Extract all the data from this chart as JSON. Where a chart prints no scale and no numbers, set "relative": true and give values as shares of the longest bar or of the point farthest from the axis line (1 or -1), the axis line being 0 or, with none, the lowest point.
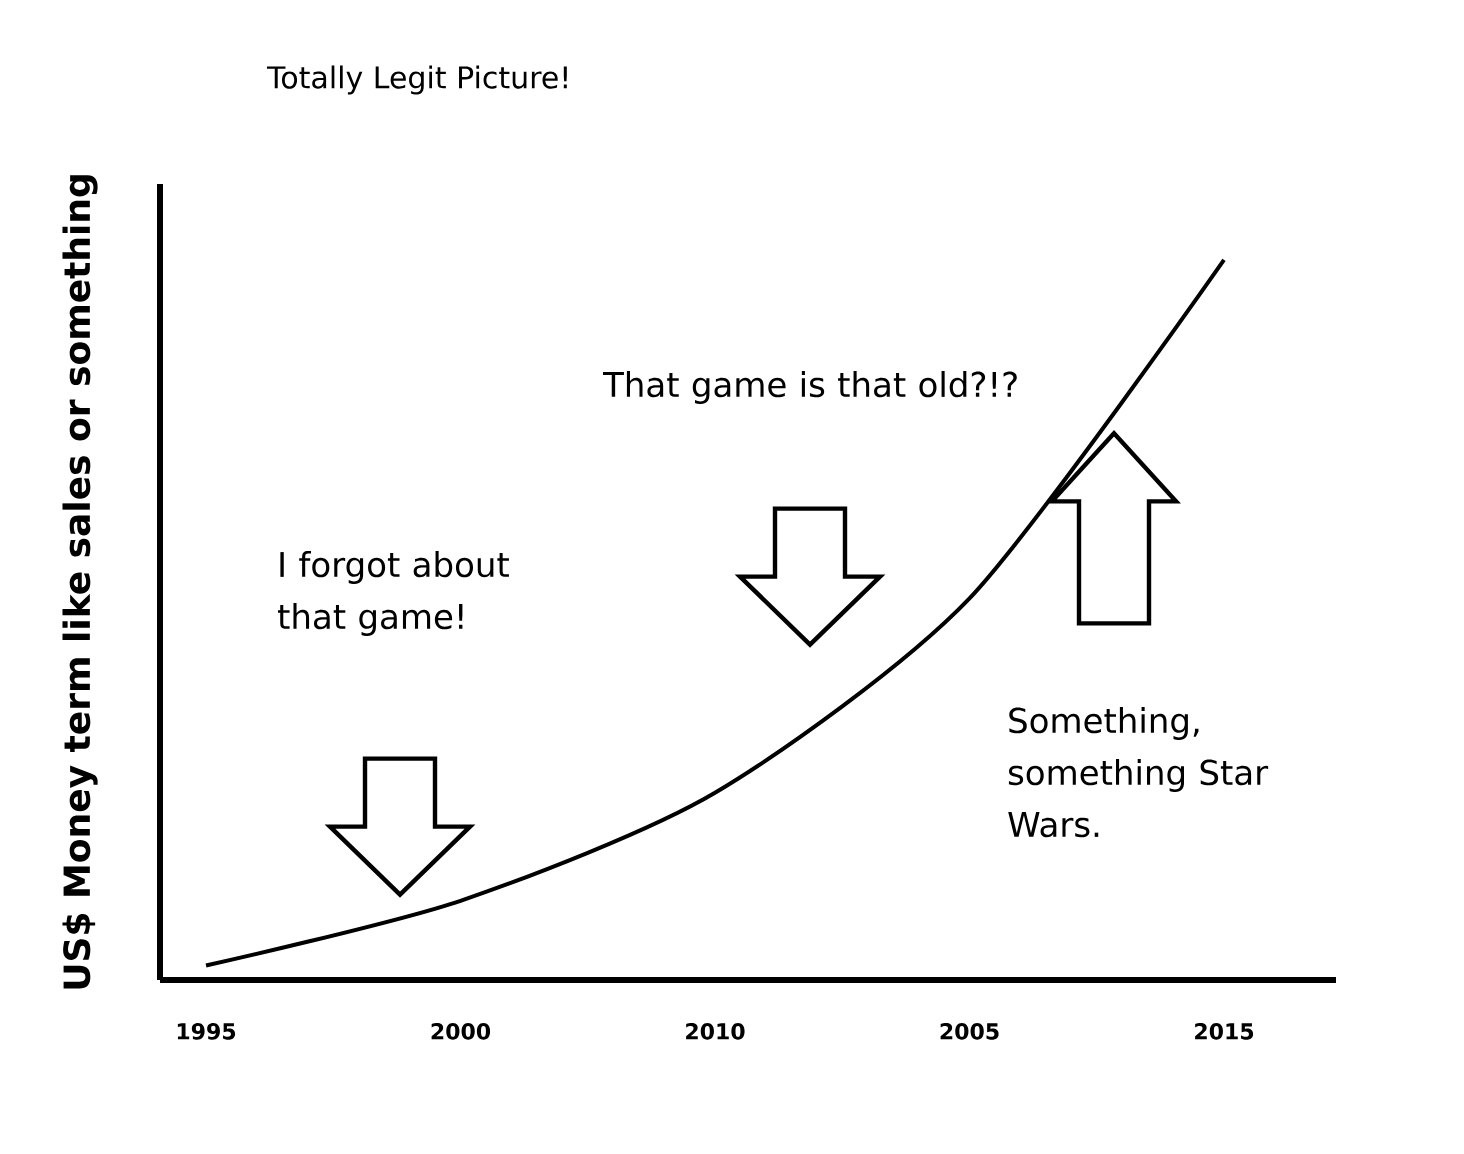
{
  "chart_data": {
    "type": "line",
    "title": "Totally Legit Picture!",
    "ylabel": "US$ Money term like sales or something",
    "categories": [
      "1995",
      "2000",
      "2010",
      "2005",
      "2015"
    ],
    "values": [
      0.02,
      0.11,
      0.26,
      0.53,
      1
    ],
    "color": "#000000",
    "relative": true,
    "annotations": [
      "I forgot about that game!",
      "That game is that old?!?",
      "Something, something Star Wars."
    ]
  }
}
